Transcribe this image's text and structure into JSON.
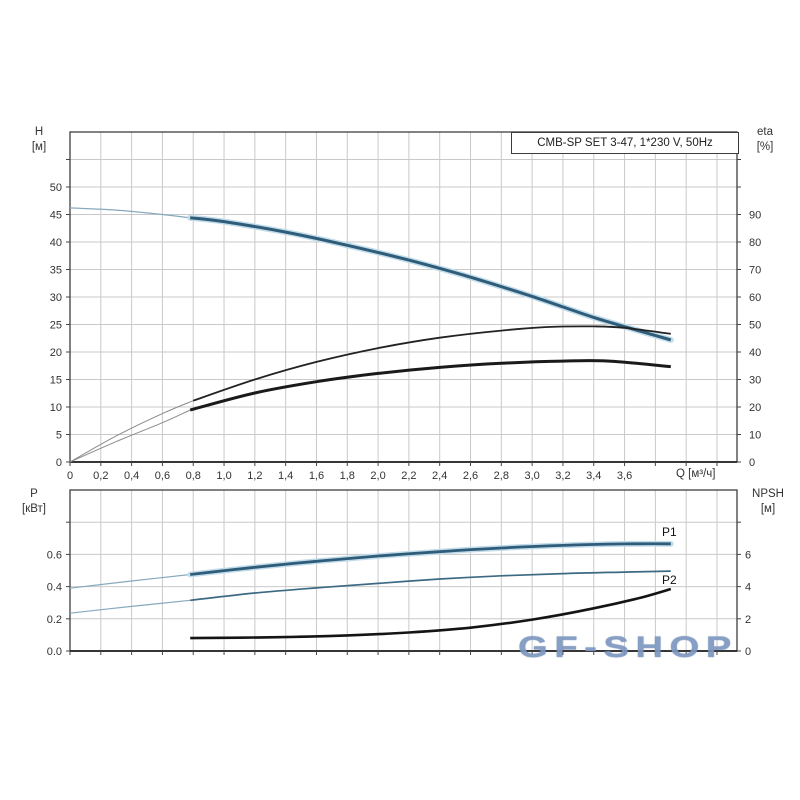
{
  "page": {
    "background": "#ffffff"
  },
  "title_box": {
    "text": "CMB-SP SET 3-47, 1*230 V, 50Hz"
  },
  "watermark": {
    "text": "GF-SHOP",
    "color": "#7d97bf"
  },
  "axis_titles": {
    "h": [
      "H",
      "[м]"
    ],
    "eta": [
      "eta",
      "[%]"
    ],
    "p": [
      "P",
      "[кВт]"
    ],
    "npsh": [
      "NPSH",
      "[м]"
    ],
    "q": "Q [м³/ч]"
  },
  "curve_labels": {
    "p1": "P1",
    "p2": "P2"
  },
  "colors": {
    "curve_blue": "#2e5c79",
    "curve_blue_halo": "#c2dcea",
    "curve_thin_blue": "#86a9bd",
    "curve_black": "#1a1a1a",
    "curve_thin_gray": "#8a8a8a",
    "grid": "#c9c9c9",
    "border": "#3f3f3f"
  },
  "chart_data": [
    {
      "type": "line",
      "title": "CMB-SP SET 3-47, 1*230 V, 50Hz",
      "xlabel": "Q [м³/ч]",
      "ylabel_left": "H [м]",
      "ylabel_right": "eta [%]",
      "x_range": [
        0,
        4.33
      ],
      "y_left_range": [
        0,
        60
      ],
      "y_right_range": [
        0,
        120
      ],
      "grid": true,
      "x_tick_labels": [
        {
          "v": 0,
          "t": "0"
        },
        {
          "v": 0.2,
          "t": "0,2"
        },
        {
          "v": 0.4,
          "t": "0,4"
        },
        {
          "v": 0.6,
          "t": "0,6"
        },
        {
          "v": 0.8,
          "t": "0,8"
        },
        {
          "v": 1.0,
          "t": "1,0"
        },
        {
          "v": 1.2,
          "t": "1,2"
        },
        {
          "v": 1.4,
          "t": "1,4"
        },
        {
          "v": 1.6,
          "t": "1,6"
        },
        {
          "v": 1.8,
          "t": "1,8"
        },
        {
          "v": 2.0,
          "t": "2,0"
        },
        {
          "v": 2.2,
          "t": "2,2"
        },
        {
          "v": 2.4,
          "t": "2,4"
        },
        {
          "v": 2.6,
          "t": "2,6"
        },
        {
          "v": 2.8,
          "t": "2,8"
        },
        {
          "v": 3.0,
          "t": "3,0"
        },
        {
          "v": 3.2,
          "t": "3,2"
        },
        {
          "v": 3.4,
          "t": "3,4"
        },
        {
          "v": 3.6,
          "t": "3,6"
        }
      ],
      "y_left_ticks": [
        {
          "v": 0,
          "t": "0"
        },
        {
          "v": 5,
          "t": "5"
        },
        {
          "v": 10,
          "t": "10"
        },
        {
          "v": 15,
          "t": "15"
        },
        {
          "v": 20,
          "t": "20"
        },
        {
          "v": 25,
          "t": "25"
        },
        {
          "v": 30,
          "t": "30"
        },
        {
          "v": 35,
          "t": "35"
        },
        {
          "v": 40,
          "t": "40"
        },
        {
          "v": 45,
          "t": "45"
        },
        {
          "v": 50,
          "t": "50"
        }
      ],
      "y_right_ticks": [
        {
          "v": 0,
          "t": "0"
        },
        {
          "v": 10,
          "t": "10"
        },
        {
          "v": 20,
          "t": "20"
        },
        {
          "v": 30,
          "t": "30"
        },
        {
          "v": 40,
          "t": "40"
        },
        {
          "v": 50,
          "t": "50"
        },
        {
          "v": 60,
          "t": "60"
        },
        {
          "v": 70,
          "t": "70"
        },
        {
          "v": 80,
          "t": "80"
        },
        {
          "v": 90,
          "t": "90"
        }
      ],
      "series": [
        {
          "name": "head-curve-H-Q",
          "axis": "left",
          "segments": [
            {
              "color": "#86a9bd",
              "width": 1.2,
              "points": [
                [
                  0,
                  46.2
                ],
                [
                  0.3,
                  45.8
                ],
                [
                  0.6,
                  45.0
                ],
                [
                  0.78,
                  44.4
                ]
              ]
            },
            {
              "color": "#2e5c79",
              "width": 3,
              "halo": "#c2dcea",
              "points": [
                [
                  0.78,
                  44.4
                ],
                [
                  1.0,
                  43.7
                ],
                [
                  1.4,
                  41.8
                ],
                [
                  1.8,
                  39.4
                ],
                [
                  2.2,
                  36.7
                ],
                [
                  2.6,
                  33.6
                ],
                [
                  3.0,
                  30.1
                ],
                [
                  3.4,
                  26.3
                ],
                [
                  3.7,
                  23.8
                ],
                [
                  3.9,
                  22.2
                ]
              ]
            }
          ]
        },
        {
          "name": "eta-pump-curve",
          "axis": "right",
          "segments": [
            {
              "color": "#8a8a8a",
              "width": 1,
              "points": [
                [
                  0,
                  0
                ],
                [
                  0.3,
                  9.5
                ],
                [
                  0.6,
                  17.6
                ],
                [
                  0.8,
                  22.3
                ]
              ]
            },
            {
              "color": "#222222",
              "width": 1.8,
              "points": [
                [
                  0.8,
                  22.3
                ],
                [
                  1.2,
                  30.0
                ],
                [
                  1.6,
                  36.4
                ],
                [
                  2.0,
                  41.4
                ],
                [
                  2.4,
                  45.2
                ],
                [
                  2.8,
                  47.8
                ],
                [
                  3.1,
                  49.1
                ],
                [
                  3.4,
                  49.3
                ],
                [
                  3.6,
                  48.8
                ],
                [
                  3.9,
                  46.6
                ]
              ]
            }
          ]
        },
        {
          "name": "eta-set-curve",
          "axis": "right",
          "segments": [
            {
              "color": "#8a8a8a",
              "width": 1,
              "points": [
                [
                  0,
                  0
                ],
                [
                  0.3,
                  7.4
                ],
                [
                  0.6,
                  14.3
                ],
                [
                  0.78,
                  18.9
                ]
              ]
            },
            {
              "color": "#1a1a1a",
              "width": 3,
              "points": [
                [
                  0.78,
                  18.9
                ],
                [
                  1.2,
                  25.1
                ],
                [
                  1.6,
                  29.2
                ],
                [
                  2.0,
                  32.2
                ],
                [
                  2.4,
                  34.4
                ],
                [
                  2.8,
                  35.9
                ],
                [
                  3.2,
                  36.7
                ],
                [
                  3.5,
                  36.7
                ],
                [
                  3.9,
                  34.7
                ]
              ]
            }
          ]
        }
      ]
    },
    {
      "type": "line",
      "title": "",
      "xlabel": "Q [м³/ч]",
      "ylabel_left": "P [кВт]",
      "ylabel_right": "NPSH [м]",
      "x_range": [
        0,
        4.33
      ],
      "y_left_range": [
        0,
        1.0
      ],
      "y_right_range": [
        0,
        10
      ],
      "grid": true,
      "x_tick_labels": [],
      "y_left_ticks": [
        {
          "v": 0,
          "t": "0.0"
        },
        {
          "v": 0.2,
          "t": "0.2"
        },
        {
          "v": 0.4,
          "t": "0.4"
        },
        {
          "v": 0.6,
          "t": "0.6"
        }
      ],
      "y_right_ticks": [
        {
          "v": 0,
          "t": "0"
        },
        {
          "v": 2,
          "t": "2"
        },
        {
          "v": 4,
          "t": "4"
        },
        {
          "v": 6,
          "t": "6"
        }
      ],
      "series": [
        {
          "name": "power-P1-curve",
          "label": "P1",
          "axis": "left",
          "segments": [
            {
              "color": "#86a9bd",
              "width": 1.2,
              "points": [
                [
                  0,
                  0.39
                ],
                [
                  0.4,
                  0.435
                ],
                [
                  0.78,
                  0.475
                ]
              ]
            },
            {
              "color": "#2e5c79",
              "width": 2.8,
              "halo": "#c2dcea",
              "points": [
                [
                  0.78,
                  0.475
                ],
                [
                  1.2,
                  0.52
                ],
                [
                  1.6,
                  0.557
                ],
                [
                  2.0,
                  0.59
                ],
                [
                  2.4,
                  0.617
                ],
                [
                  2.8,
                  0.64
                ],
                [
                  3.2,
                  0.656
                ],
                [
                  3.6,
                  0.665
                ],
                [
                  3.9,
                  0.666
                ]
              ]
            }
          ]
        },
        {
          "name": "power-P2-curve",
          "label": "P2",
          "axis": "left",
          "segments": [
            {
              "color": "#86a9bd",
              "width": 1.2,
              "points": [
                [
                  0,
                  0.235
                ],
                [
                  0.4,
                  0.277
                ],
                [
                  0.78,
                  0.315
                ]
              ]
            },
            {
              "color": "#3c6a82",
              "width": 1.7,
              "points": [
                [
                  0.78,
                  0.315
                ],
                [
                  1.2,
                  0.36
                ],
                [
                  1.6,
                  0.392
                ],
                [
                  2.0,
                  0.42
                ],
                [
                  2.4,
                  0.447
                ],
                [
                  2.8,
                  0.467
                ],
                [
                  3.2,
                  0.481
                ],
                [
                  3.6,
                  0.49
                ],
                [
                  3.9,
                  0.496
                ]
              ]
            }
          ]
        },
        {
          "name": "npsh-curve",
          "axis": "right",
          "segments": [
            {
              "color": "#141414",
              "width": 2.6,
              "points": [
                [
                  0.78,
                  0.8
                ],
                [
                  1.3,
                  0.85
                ],
                [
                  1.8,
                  0.97
                ],
                [
                  2.2,
                  1.15
                ],
                [
                  2.6,
                  1.45
                ],
                [
                  3.0,
                  1.95
                ],
                [
                  3.4,
                  2.65
                ],
                [
                  3.7,
                  3.3
                ],
                [
                  3.9,
                  3.85
                ]
              ]
            }
          ]
        }
      ]
    }
  ]
}
